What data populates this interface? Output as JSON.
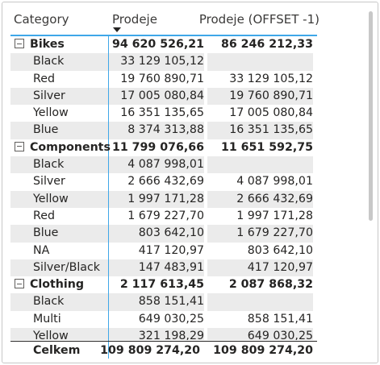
{
  "headers": {
    "category": "Category",
    "prodeje": "Prodeje",
    "offset": "Prodeje (OFFSET -1)"
  },
  "rows": [
    {
      "type": "group",
      "category": "Bikes",
      "prodeje": "94 620 526,21",
      "offset": "86 246 212,33"
    },
    {
      "type": "child",
      "category": "Black",
      "prodeje": "33 129 105,12",
      "offset": ""
    },
    {
      "type": "child",
      "category": "Red",
      "prodeje": "19 760 890,71",
      "offset": "33 129 105,12"
    },
    {
      "type": "child",
      "category": "Silver",
      "prodeje": "17 005 080,84",
      "offset": "19 760 890,71"
    },
    {
      "type": "child",
      "category": "Yellow",
      "prodeje": "16 351 135,65",
      "offset": "17 005 080,84"
    },
    {
      "type": "child",
      "category": "Blue",
      "prodeje": "8 374 313,88",
      "offset": "16 351 135,65"
    },
    {
      "type": "group",
      "category": "Components",
      "prodeje": "11 799 076,66",
      "offset": "11 651 592,75"
    },
    {
      "type": "child",
      "category": "Black",
      "prodeje": "4 087 998,01",
      "offset": ""
    },
    {
      "type": "child",
      "category": "Silver",
      "prodeje": "2 666 432,69",
      "offset": "4 087 998,01"
    },
    {
      "type": "child",
      "category": "Yellow",
      "prodeje": "1 997 171,28",
      "offset": "2 666 432,69"
    },
    {
      "type": "child",
      "category": "Red",
      "prodeje": "1 679 227,70",
      "offset": "1 997 171,28"
    },
    {
      "type": "child",
      "category": "Blue",
      "prodeje": "803 642,10",
      "offset": "1 679 227,70"
    },
    {
      "type": "child",
      "category": "NA",
      "prodeje": "417 120,97",
      "offset": "803 642,10"
    },
    {
      "type": "child",
      "category": "Silver/Black",
      "prodeje": "147 483,91",
      "offset": "417 120,97"
    },
    {
      "type": "group",
      "category": "Clothing",
      "prodeje": "2 117 613,45",
      "offset": "2 087 868,32"
    },
    {
      "type": "child",
      "category": "Black",
      "prodeje": "858 151,41",
      "offset": ""
    },
    {
      "type": "child",
      "category": "Multi",
      "prodeje": "649 030,25",
      "offset": "858 151,41"
    },
    {
      "type": "child",
      "category": "Yellow",
      "prodeje": "321 198,29",
      "offset": "649 030,25"
    }
  ],
  "total": {
    "label": "Celkem",
    "prodeje": "109 809 274,20",
    "offset": "109 809 274,20"
  },
  "colors": {
    "accent": "#3fa7e8",
    "stripe": "#ebebeb"
  },
  "icons": {
    "collapse": "collapse-minus-icon",
    "sort": "sort-descending-icon"
  }
}
